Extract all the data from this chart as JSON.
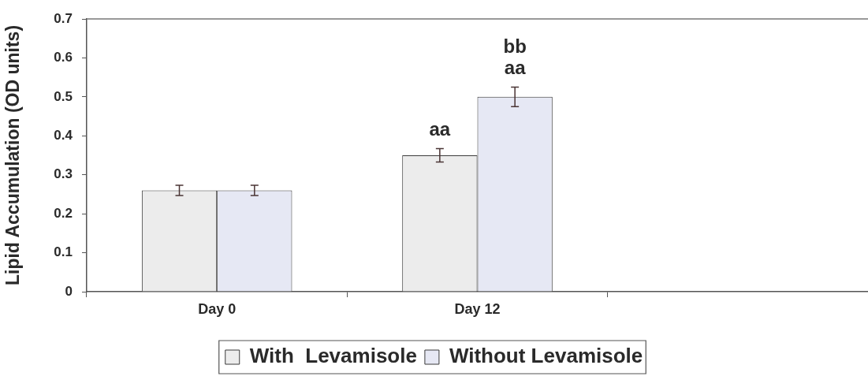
{
  "chart_data": {
    "type": "bar",
    "categories": [
      "Day 0",
      "Day 12",
      null
    ],
    "series": [
      {
        "name": "With  Levamisole",
        "color": "#ececec",
        "values": [
          0.26,
          0.35,
          null
        ],
        "errors": [
          0.013,
          0.017,
          null
        ]
      },
      {
        "name": "Without Levamisole",
        "color": "#e6e8f4",
        "values": [
          0.26,
          0.5,
          null
        ],
        "errors": [
          0.013,
          0.025,
          null
        ]
      }
    ],
    "ylabel": "Lipid Accumulation (OD units)",
    "ylim": [
      0,
      0.7
    ],
    "yticks": [
      0,
      0.1,
      0.2,
      0.3,
      0.4,
      0.5,
      0.6,
      0.7
    ],
    "annotations": [
      {
        "text": "aa",
        "x": "Day 12",
        "y": 0.35
      },
      {
        "text": "bb\naa",
        "x": "Day 12",
        "y": 0.5
      }
    ],
    "legend": "bottom"
  }
}
